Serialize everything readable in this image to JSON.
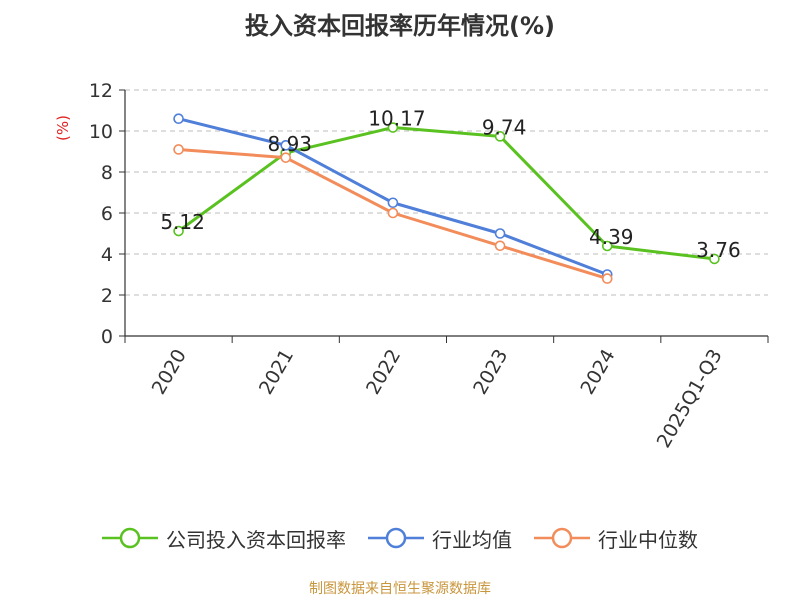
{
  "chart_data": {
    "type": "line",
    "title": "投入资本回报率历年情况(%)",
    "ylabel": "(%)",
    "xlabel": "",
    "categories": [
      "2020",
      "2021",
      "2022",
      "2023",
      "2024",
      "2025Q1-Q3"
    ],
    "ylim": [
      0,
      12
    ],
    "yticks": [
      0,
      2,
      4,
      6,
      8,
      10,
      12
    ],
    "grid": true,
    "legend_position": "bottom",
    "series": [
      {
        "name": "公司投入资本回报率",
        "color": "#5ac220",
        "values": [
          5.12,
          8.93,
          10.17,
          9.74,
          4.39,
          3.76
        ],
        "labels": [
          "5.12",
          "8.93",
          "10.17",
          "9.74",
          "4.39",
          "3.76"
        ]
      },
      {
        "name": "行业均值",
        "color": "#4f7fd9",
        "values": [
          10.6,
          9.3,
          6.5,
          5.0,
          3.0,
          null
        ]
      },
      {
        "name": "行业中位数",
        "color": "#f28c5a",
        "values": [
          9.1,
          8.7,
          6.0,
          4.4,
          2.8,
          null
        ]
      }
    ]
  },
  "source": "制图数据来自恒生聚源数据库"
}
